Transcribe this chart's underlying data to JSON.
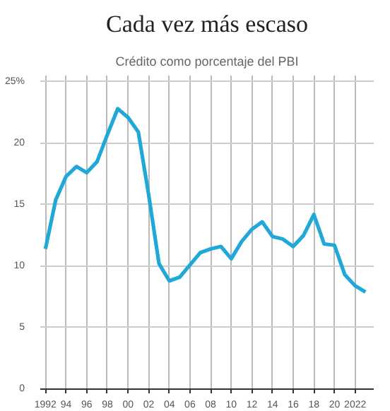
{
  "chart_data": {
    "type": "line",
    "title": "Cada vez más escaso",
    "subtitle": "Crédito como porcentaje del PBI",
    "x": [
      1992,
      1993,
      1994,
      1995,
      1996,
      1997,
      1998,
      1999,
      2000,
      2001,
      2002,
      2003,
      2004,
      2005,
      2006,
      2007,
      2008,
      2009,
      2010,
      2011,
      2012,
      2013,
      2014,
      2015,
      2016,
      2017,
      2018,
      2019,
      2020,
      2021,
      2022,
      2023
    ],
    "series": [
      {
        "color": "#1fa8d8",
        "values": [
          11.4,
          15.4,
          17.3,
          18.1,
          17.6,
          18.5,
          20.7,
          22.8,
          22.1,
          20.9,
          15.8,
          10.2,
          8.8,
          9.1,
          10.1,
          11.1,
          11.4,
          11.6,
          10.6,
          12.0,
          13.0,
          13.6,
          12.4,
          12.2,
          11.6,
          12.5,
          14.2,
          11.8,
          11.7,
          9.3,
          8.4,
          7.9
        ]
      }
    ],
    "xlim": [
      1991.5,
      2023.8
    ],
    "xticks": [
      {
        "value": 1992,
        "label": "1992"
      },
      {
        "value": 1994,
        "label": "94"
      },
      {
        "value": 1996,
        "label": "96"
      },
      {
        "value": 1998,
        "label": "98"
      },
      {
        "value": 2000,
        "label": "00"
      },
      {
        "value": 2002,
        "label": "02"
      },
      {
        "value": 2004,
        "label": "04"
      },
      {
        "value": 2006,
        "label": "06"
      },
      {
        "value": 2008,
        "label": "08"
      },
      {
        "value": 2010,
        "label": "10"
      },
      {
        "value": 2012,
        "label": "12"
      },
      {
        "value": 2014,
        "label": "14"
      },
      {
        "value": 2016,
        "label": "16"
      },
      {
        "value": 2018,
        "label": "18"
      },
      {
        "value": 2020,
        "label": "20"
      },
      {
        "value": 2022,
        "label": "2022"
      }
    ],
    "ylim": [
      0,
      25.5
    ],
    "yticks": [
      0,
      5,
      10,
      15,
      20,
      {
        "value": 25,
        "label": "25%"
      }
    ],
    "grid": true,
    "marker": "none",
    "line_style": "solid"
  }
}
